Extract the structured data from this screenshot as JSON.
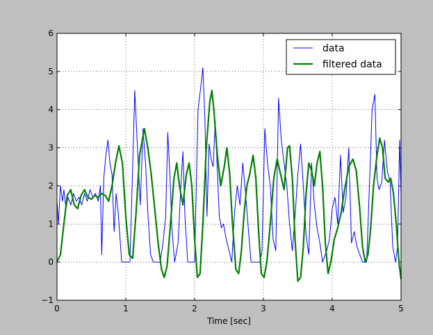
{
  "chart_data": {
    "type": "line",
    "title": "",
    "xlabel": "Time [sec]",
    "ylabel": "",
    "xlim": [
      0,
      5
    ],
    "ylim": [
      -1,
      6
    ],
    "xticks": [
      "0",
      "1",
      "2",
      "3",
      "4",
      "5"
    ],
    "yticks": [
      "−1",
      "0",
      "1",
      "2",
      "3",
      "4",
      "5",
      "6"
    ],
    "grid": true,
    "legend_position": "top-right",
    "series": [
      {
        "name": "data",
        "color": "#0000ff",
        "points": [
          [
            0.0,
            1.6
          ],
          [
            0.02,
            1.0
          ],
          [
            0.05,
            2.0
          ],
          [
            0.08,
            1.6
          ],
          [
            0.1,
            1.9
          ],
          [
            0.13,
            1.4
          ],
          [
            0.16,
            1.7
          ],
          [
            0.2,
            1.5
          ],
          [
            0.24,
            1.8
          ],
          [
            0.28,
            1.6
          ],
          [
            0.32,
            1.7
          ],
          [
            0.36,
            1.5
          ],
          [
            0.4,
            1.8
          ],
          [
            0.44,
            1.6
          ],
          [
            0.48,
            1.9
          ],
          [
            0.52,
            1.7
          ],
          [
            0.56,
            1.8
          ],
          [
            0.6,
            1.6
          ],
          [
            0.63,
            2.0
          ],
          [
            0.65,
            0.2
          ],
          [
            0.68,
            2.2
          ],
          [
            0.71,
            2.8
          ],
          [
            0.74,
            3.2
          ],
          [
            0.77,
            2.6
          ],
          [
            0.8,
            2.3
          ],
          [
            0.83,
            0.8
          ],
          [
            0.86,
            1.8
          ],
          [
            0.89,
            1.3
          ],
          [
            0.94,
            0.0
          ],
          [
            1.06,
            0.0
          ],
          [
            1.1,
            2.5
          ],
          [
            1.13,
            4.5
          ],
          [
            1.17,
            3.0
          ],
          [
            1.21,
            1.5
          ],
          [
            1.25,
            3.5
          ],
          [
            1.29,
            2.5
          ],
          [
            1.32,
            1.3
          ],
          [
            1.36,
            0.2
          ],
          [
            1.4,
            0.0
          ],
          [
            1.46,
            0.0
          ],
          [
            1.5,
            0.0
          ],
          [
            1.54,
            0.5
          ],
          [
            1.58,
            1.2
          ],
          [
            1.61,
            3.4
          ],
          [
            1.64,
            2.3
          ],
          [
            1.67,
            0.9
          ],
          [
            1.71,
            0.0
          ],
          [
            1.76,
            0.5
          ],
          [
            1.8,
            2.0
          ],
          [
            1.83,
            2.9
          ],
          [
            1.86,
            1.2
          ],
          [
            1.9,
            0.0
          ],
          [
            2.0,
            0.0
          ],
          [
            2.05,
            4.0
          ],
          [
            2.09,
            4.6
          ],
          [
            2.12,
            5.1
          ],
          [
            2.15,
            3.7
          ],
          [
            2.18,
            1.2
          ],
          [
            2.21,
            3.1
          ],
          [
            2.24,
            2.7
          ],
          [
            2.27,
            2.5
          ],
          [
            2.3,
            3.7
          ],
          [
            2.33,
            2.4
          ],
          [
            2.36,
            1.2
          ],
          [
            2.39,
            0.9
          ],
          [
            2.42,
            1.0
          ],
          [
            2.46,
            0.6
          ],
          [
            2.5,
            0.3
          ],
          [
            2.54,
            0.0
          ],
          [
            2.58,
            1.3
          ],
          [
            2.62,
            2.0
          ],
          [
            2.66,
            1.5
          ],
          [
            2.7,
            2.6
          ],
          [
            2.74,
            1.8
          ],
          [
            2.78,
            0.9
          ],
          [
            2.82,
            0.0
          ],
          [
            2.9,
            0.0
          ],
          [
            2.95,
            0.0
          ],
          [
            2.98,
            0.3
          ],
          [
            3.02,
            3.5
          ],
          [
            3.06,
            2.6
          ],
          [
            3.1,
            2.0
          ],
          [
            3.14,
            0.6
          ],
          [
            3.18,
            0.3
          ],
          [
            3.22,
            4.3
          ],
          [
            3.26,
            3.2
          ],
          [
            3.3,
            2.6
          ],
          [
            3.34,
            2.0
          ],
          [
            3.38,
            1.0
          ],
          [
            3.42,
            0.3
          ],
          [
            3.46,
            1.2
          ],
          [
            3.5,
            2.3
          ],
          [
            3.54,
            3.1
          ],
          [
            3.58,
            2.0
          ],
          [
            3.62,
            0.7
          ],
          [
            3.66,
            0.2
          ],
          [
            3.7,
            2.6
          ],
          [
            3.74,
            1.5
          ],
          [
            3.78,
            0.9
          ],
          [
            3.82,
            0.5
          ],
          [
            3.86,
            0.0
          ],
          [
            3.92,
            0.3
          ],
          [
            3.96,
            0.6
          ],
          [
            4.0,
            1.4
          ],
          [
            4.04,
            1.7
          ],
          [
            4.08,
            1.0
          ],
          [
            4.12,
            2.8
          ],
          [
            4.16,
            1.3
          ],
          [
            4.2,
            1.7
          ],
          [
            4.24,
            3.0
          ],
          [
            4.28,
            0.5
          ],
          [
            4.32,
            0.8
          ],
          [
            4.36,
            0.4
          ],
          [
            4.4,
            0.2
          ],
          [
            4.44,
            0.0
          ],
          [
            4.5,
            0.0
          ],
          [
            4.54,
            2.0
          ],
          [
            4.58,
            4.0
          ],
          [
            4.62,
            4.4
          ],
          [
            4.65,
            2.2
          ],
          [
            4.68,
            1.9
          ],
          [
            4.72,
            2.1
          ],
          [
            4.76,
            3.2
          ],
          [
            4.8,
            2.4
          ],
          [
            4.84,
            2.1
          ],
          [
            4.88,
            0.4
          ],
          [
            4.92,
            0.0
          ],
          [
            4.95,
            0.4
          ],
          [
            4.98,
            3.2
          ],
          [
            5.0,
            1.8
          ]
        ]
      },
      {
        "name": "filtered data",
        "color": "#008000",
        "points": [
          [
            0.0,
            0.0
          ],
          [
            0.05,
            0.2
          ],
          [
            0.1,
            1.0
          ],
          [
            0.15,
            1.75
          ],
          [
            0.2,
            1.9
          ],
          [
            0.25,
            1.5
          ],
          [
            0.3,
            1.4
          ],
          [
            0.35,
            1.75
          ],
          [
            0.4,
            1.9
          ],
          [
            0.45,
            1.7
          ],
          [
            0.5,
            1.65
          ],
          [
            0.55,
            1.75
          ],
          [
            0.6,
            1.7
          ],
          [
            0.65,
            1.8
          ],
          [
            0.7,
            1.75
          ],
          [
            0.75,
            1.6
          ],
          [
            0.8,
            2.0
          ],
          [
            0.85,
            2.6
          ],
          [
            0.9,
            3.05
          ],
          [
            0.95,
            2.6
          ],
          [
            1.0,
            1.2
          ],
          [
            1.05,
            0.2
          ],
          [
            1.1,
            0.1
          ],
          [
            1.15,
            1.3
          ],
          [
            1.2,
            2.8
          ],
          [
            1.27,
            3.5
          ],
          [
            1.32,
            3.0
          ],
          [
            1.37,
            2.3
          ],
          [
            1.42,
            1.4
          ],
          [
            1.47,
            0.5
          ],
          [
            1.52,
            -0.2
          ],
          [
            1.56,
            -0.4
          ],
          [
            1.6,
            -0.1
          ],
          [
            1.65,
            1.0
          ],
          [
            1.7,
            2.2
          ],
          [
            1.74,
            2.6
          ],
          [
            1.78,
            2.0
          ],
          [
            1.83,
            1.5
          ],
          [
            1.88,
            2.3
          ],
          [
            1.92,
            2.6
          ],
          [
            1.96,
            2.0
          ],
          [
            2.0,
            0.6
          ],
          [
            2.04,
            -0.4
          ],
          [
            2.08,
            -0.3
          ],
          [
            2.12,
            1.0
          ],
          [
            2.17,
            3.0
          ],
          [
            2.22,
            4.2
          ],
          [
            2.25,
            4.5
          ],
          [
            2.28,
            4.0
          ],
          [
            2.33,
            2.8
          ],
          [
            2.38,
            2.0
          ],
          [
            2.43,
            2.5
          ],
          [
            2.47,
            3.0
          ],
          [
            2.51,
            2.3
          ],
          [
            2.55,
            1.0
          ],
          [
            2.6,
            -0.2
          ],
          [
            2.64,
            -0.3
          ],
          [
            2.68,
            0.3
          ],
          [
            2.72,
            1.3
          ],
          [
            2.76,
            2.0
          ],
          [
            2.8,
            2.3
          ],
          [
            2.85,
            2.8
          ],
          [
            2.89,
            2.2
          ],
          [
            2.93,
            0.8
          ],
          [
            2.97,
            -0.3
          ],
          [
            3.01,
            -0.4
          ],
          [
            3.05,
            0.0
          ],
          [
            3.1,
            1.0
          ],
          [
            3.15,
            2.2
          ],
          [
            3.2,
            2.7
          ],
          [
            3.25,
            2.3
          ],
          [
            3.3,
            1.9
          ],
          [
            3.35,
            3.0
          ],
          [
            3.38,
            3.05
          ],
          [
            3.42,
            2.2
          ],
          [
            3.46,
            0.6
          ],
          [
            3.5,
            -0.5
          ],
          [
            3.54,
            -0.4
          ],
          [
            3.58,
            0.4
          ],
          [
            3.62,
            1.8
          ],
          [
            3.66,
            2.6
          ],
          [
            3.7,
            2.4
          ],
          [
            3.74,
            2.0
          ],
          [
            3.78,
            2.6
          ],
          [
            3.82,
            2.9
          ],
          [
            3.86,
            2.0
          ],
          [
            3.9,
            0.5
          ],
          [
            3.94,
            -0.3
          ],
          [
            3.98,
            0.0
          ],
          [
            4.03,
            0.6
          ],
          [
            4.08,
            0.9
          ],
          [
            4.13,
            1.3
          ],
          [
            4.18,
            1.9
          ],
          [
            4.24,
            2.5
          ],
          [
            4.3,
            2.7
          ],
          [
            4.35,
            2.4
          ],
          [
            4.4,
            1.4
          ],
          [
            4.44,
            0.4
          ],
          [
            4.48,
            0.0
          ],
          [
            4.52,
            0.2
          ],
          [
            4.56,
            0.9
          ],
          [
            4.6,
            2.0
          ],
          [
            4.65,
            2.8
          ],
          [
            4.69,
            3.25
          ],
          [
            4.73,
            3.0
          ],
          [
            4.77,
            2.2
          ],
          [
            4.81,
            2.1
          ],
          [
            4.85,
            2.2
          ],
          [
            4.89,
            1.8
          ],
          [
            4.93,
            1.0
          ],
          [
            4.97,
            0.0
          ],
          [
            5.0,
            -0.45
          ]
        ]
      }
    ]
  }
}
